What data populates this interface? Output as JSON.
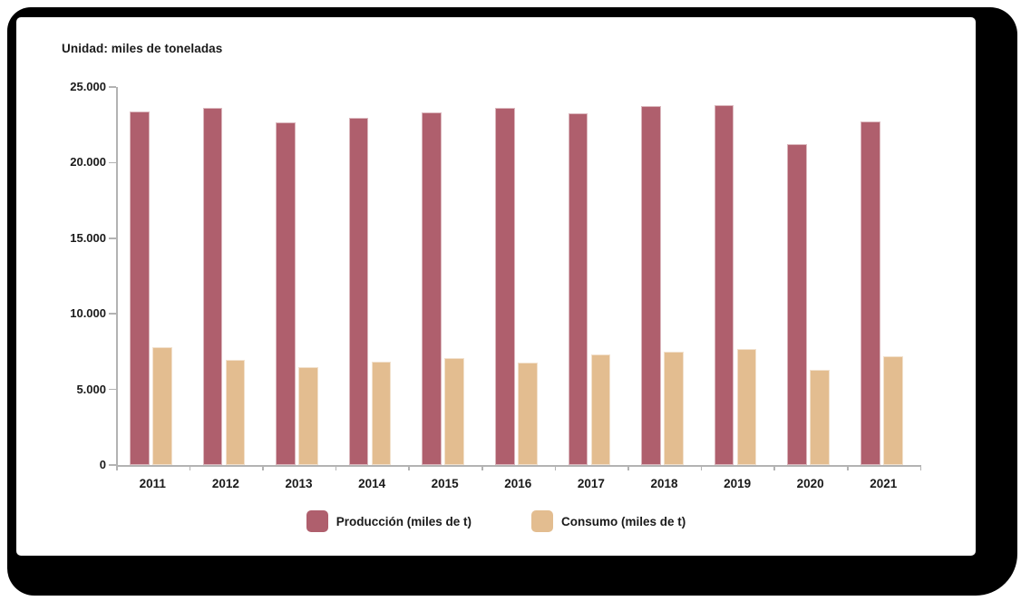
{
  "header": {
    "unit_label": "Unidad: miles de toneladas"
  },
  "chart_data": {
    "type": "bar",
    "title": "Unidad: miles de toneladas",
    "categories": [
      "2011",
      "2012",
      "2013",
      "2014",
      "2015",
      "2016",
      "2017",
      "2018",
      "2019",
      "2020",
      "2021"
    ],
    "series": [
      {
        "name": "Producción (miles de t)",
        "color": "#af5f6d",
        "values": [
          23400,
          23650,
          22650,
          22950,
          23350,
          23600,
          23250,
          23750,
          23800,
          21200,
          22750
        ]
      },
      {
        "name": "Consumo (miles de t)",
        "color": "#e3bd90",
        "values": [
          7800,
          6950,
          6500,
          6850,
          7050,
          6800,
          7300,
          7500,
          7650,
          6300,
          7200
        ]
      }
    ],
    "xlabel": "",
    "ylabel": "",
    "ylim": [
      0,
      25000
    ],
    "ytick_step": 5000,
    "ytick_labels": [
      "0",
      "5.000",
      "10.000",
      "15.000",
      "20.000",
      "25.000"
    ],
    "grid": false,
    "legend_position": "bottom",
    "axis_color": "#b3b3b3",
    "text_color": "#1a1a1a"
  },
  "legend": {
    "items": [
      {
        "label": "Producción (miles de t)",
        "color": "#af5f6d"
      },
      {
        "label": "Consumo (miles de t)",
        "color": "#e3bd90"
      }
    ]
  },
  "frame": {
    "color": "#000000",
    "panel_color": "#ffffff"
  }
}
